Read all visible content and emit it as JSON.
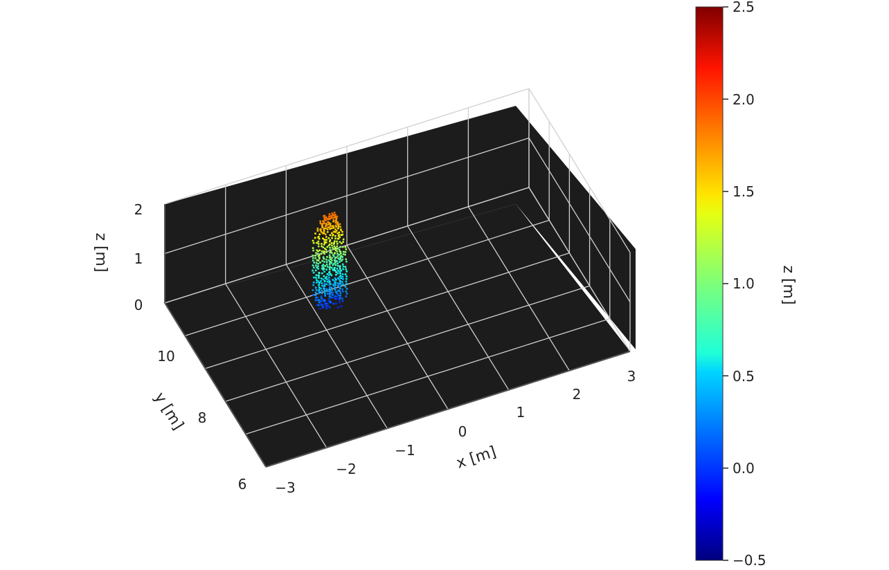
{
  "chart_data": {
    "type": "scatter",
    "projection": "3d",
    "background_color": "#1c1c1c",
    "grid": true,
    "xlabel": "x [m]",
    "ylabel": "y [m]",
    "zlabel": "z [m]",
    "xlim": [
      -3,
      3
    ],
    "ylim": [
      6,
      11
    ],
    "zlim": [
      0,
      2
    ],
    "x_ticks": [
      "−3",
      "−2",
      "−1",
      "0",
      "1",
      "2",
      "3"
    ],
    "y_ticks": [
      "6",
      "8",
      "10"
    ],
    "z_ticks": [
      "0",
      "1",
      "2"
    ],
    "colormap": "jet",
    "color_by": "z",
    "cluster": {
      "x_center": -0.75,
      "y_center": 9.6,
      "x_halfwidth": 0.22,
      "y_halfwidth": 0.15,
      "z_min": 0.0,
      "z_max": 1.8
    },
    "colorbar": {
      "label": "z [m]",
      "min": -0.5,
      "max": 2.5,
      "ticks": [
        "−0.5",
        "0.0",
        "0.5",
        "1.0",
        "1.5",
        "2.0",
        "2.5"
      ]
    }
  }
}
